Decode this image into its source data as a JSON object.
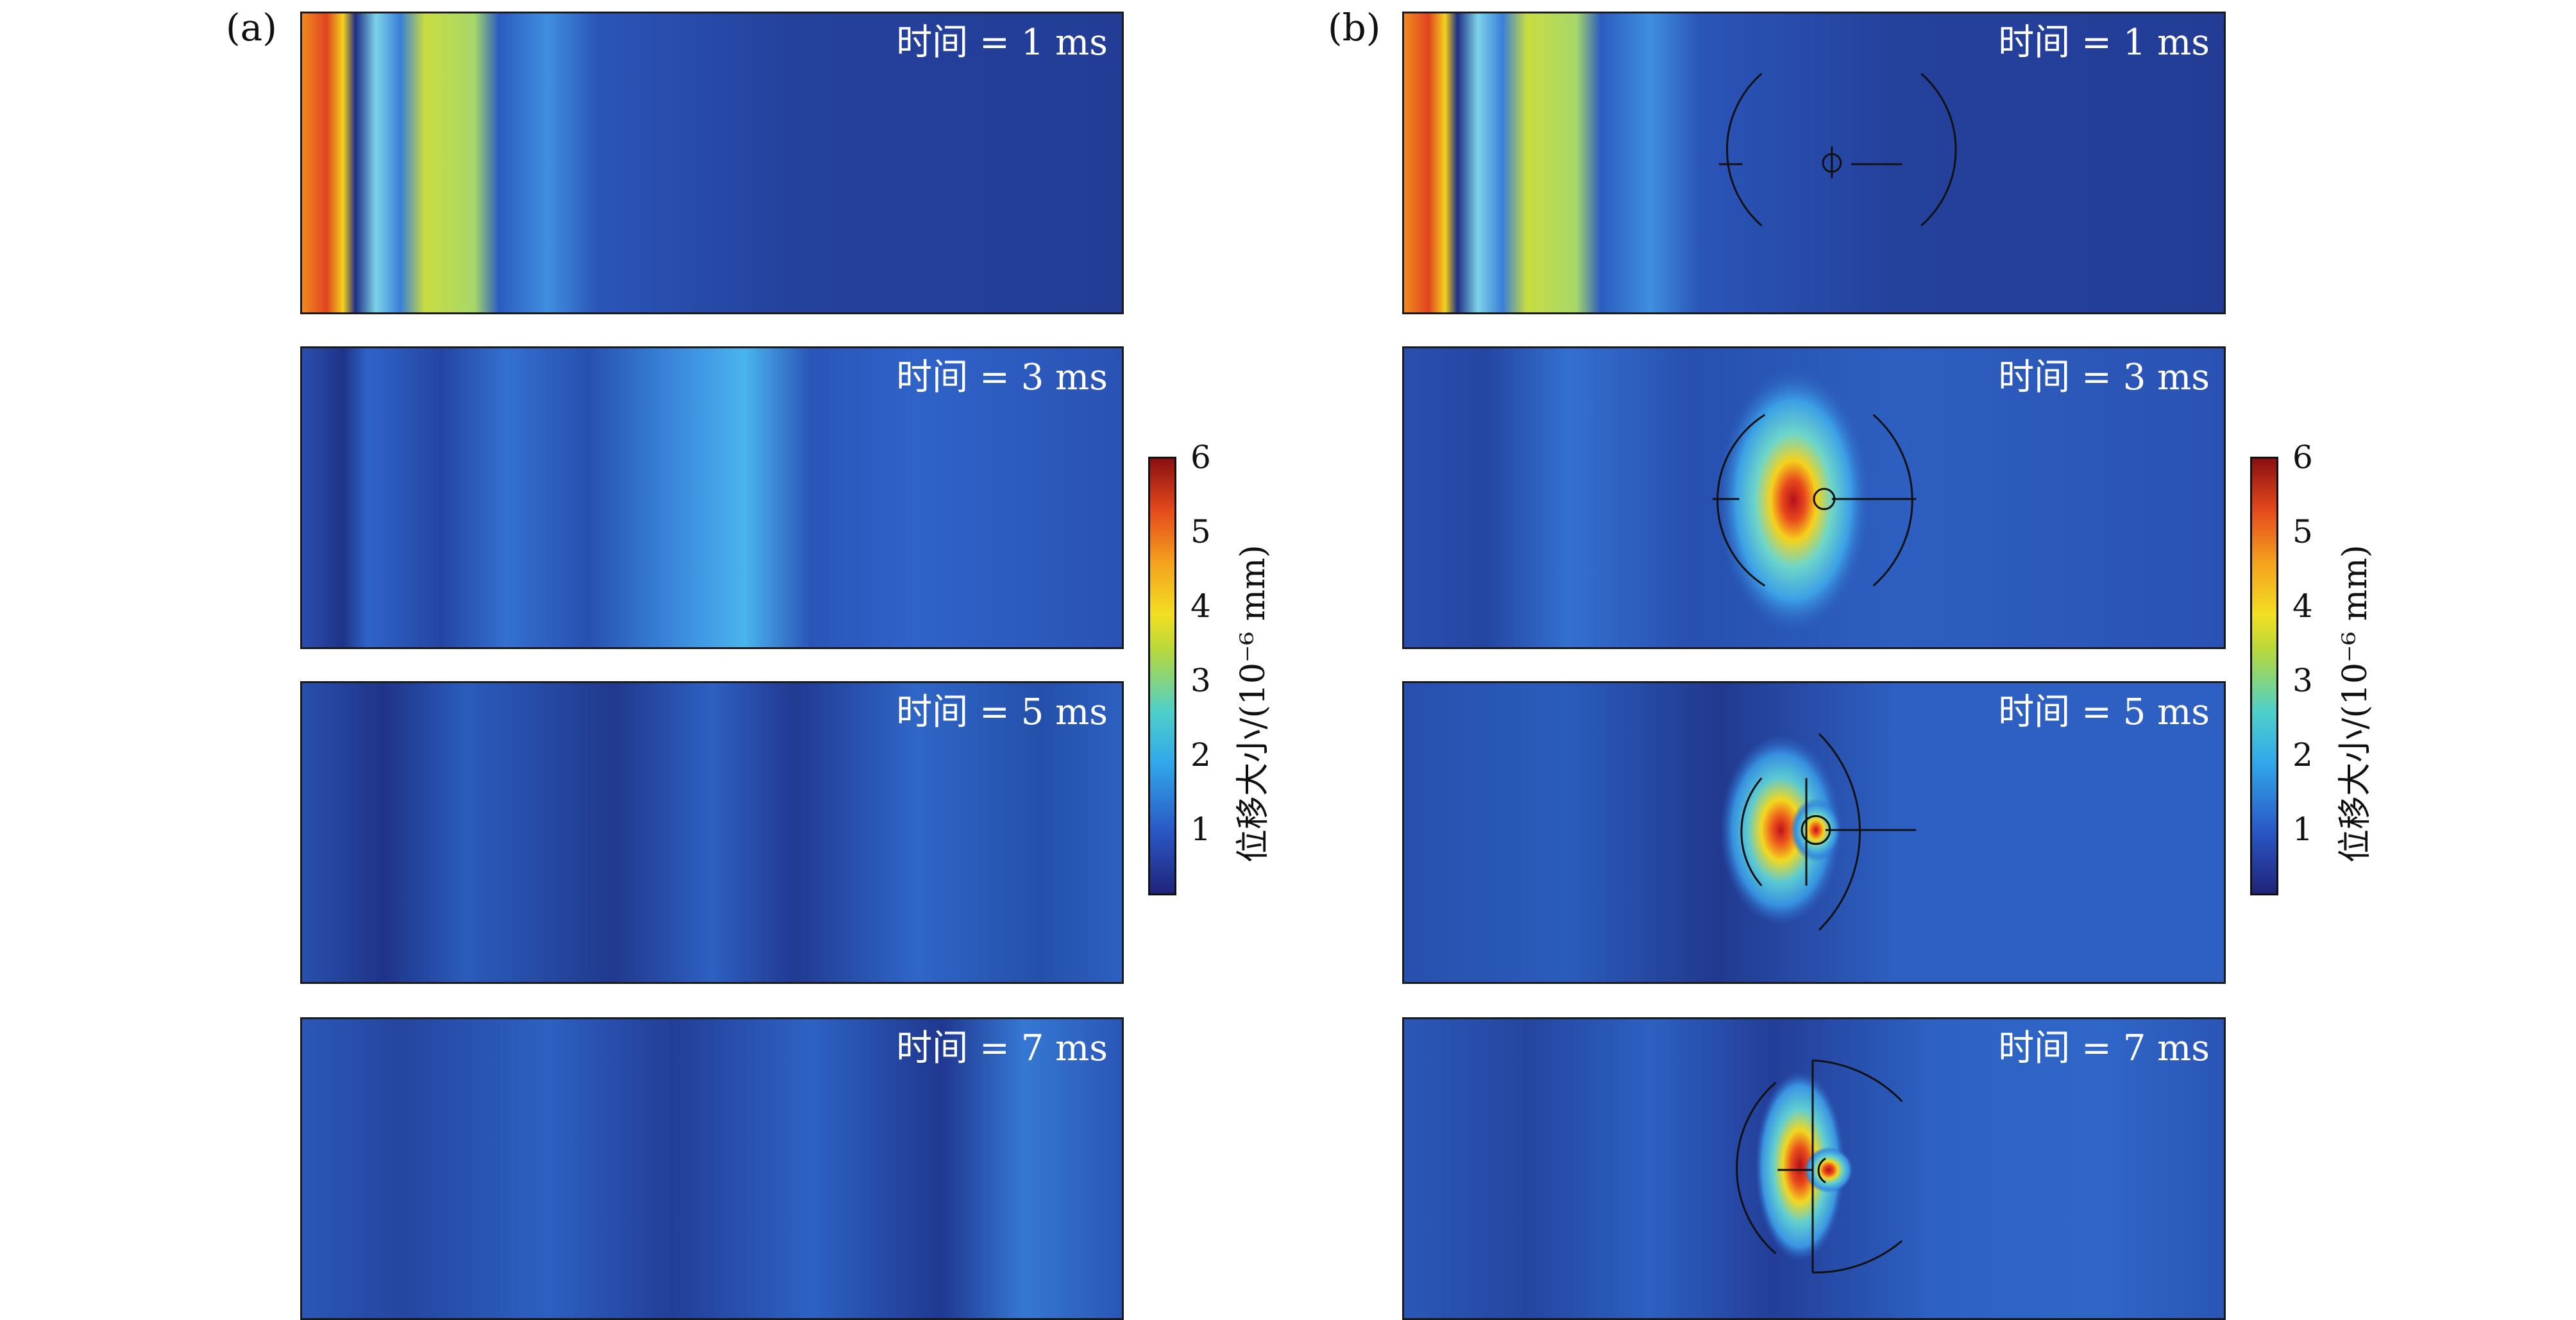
{
  "figure": {
    "panels": [
      {
        "label": "(a)",
        "times": [
          "时间 = 1 ms",
          "时间 = 3 ms",
          "时间 = 5 ms",
          "时间 = 7 ms"
        ]
      },
      {
        "label": "(b)",
        "times": [
          "时间 = 1 ms",
          "时间 = 3 ms",
          "时间 = 5 ms",
          "时间 = 7 ms"
        ]
      }
    ],
    "colorbar": {
      "title": "位移大小/(10⁻⁶ mm)",
      "ticks": [
        "1",
        "2",
        "3",
        "4",
        "5",
        "6"
      ]
    },
    "colors": {
      "background_field": "#233d96",
      "frame": "#1a1a1a"
    }
  }
}
